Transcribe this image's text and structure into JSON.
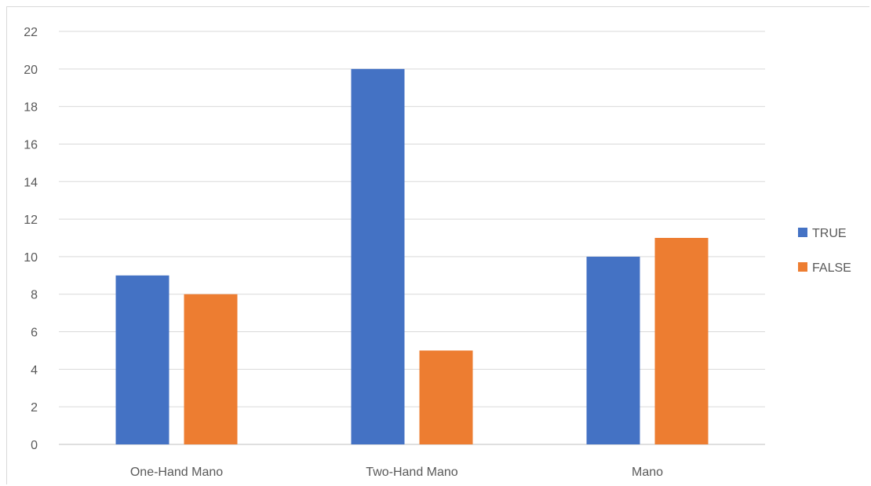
{
  "chart_data": {
    "type": "bar",
    "categories": [
      "One-Hand Mano",
      "Two-Hand Mano",
      "Mano"
    ],
    "series": [
      {
        "name": "TRUE",
        "values": [
          9,
          20,
          10
        ],
        "color": "#4472C4"
      },
      {
        "name": "FALSE",
        "values": [
          8,
          5,
          11
        ],
        "color": "#ED7D31"
      }
    ],
    "title": "",
    "xlabel": "",
    "ylabel": "",
    "ylim": [
      0,
      22
    ],
    "yticks": [
      0,
      2,
      4,
      6,
      8,
      10,
      12,
      14,
      16,
      18,
      20,
      22
    ],
    "grid": true,
    "legend_position": "right"
  }
}
